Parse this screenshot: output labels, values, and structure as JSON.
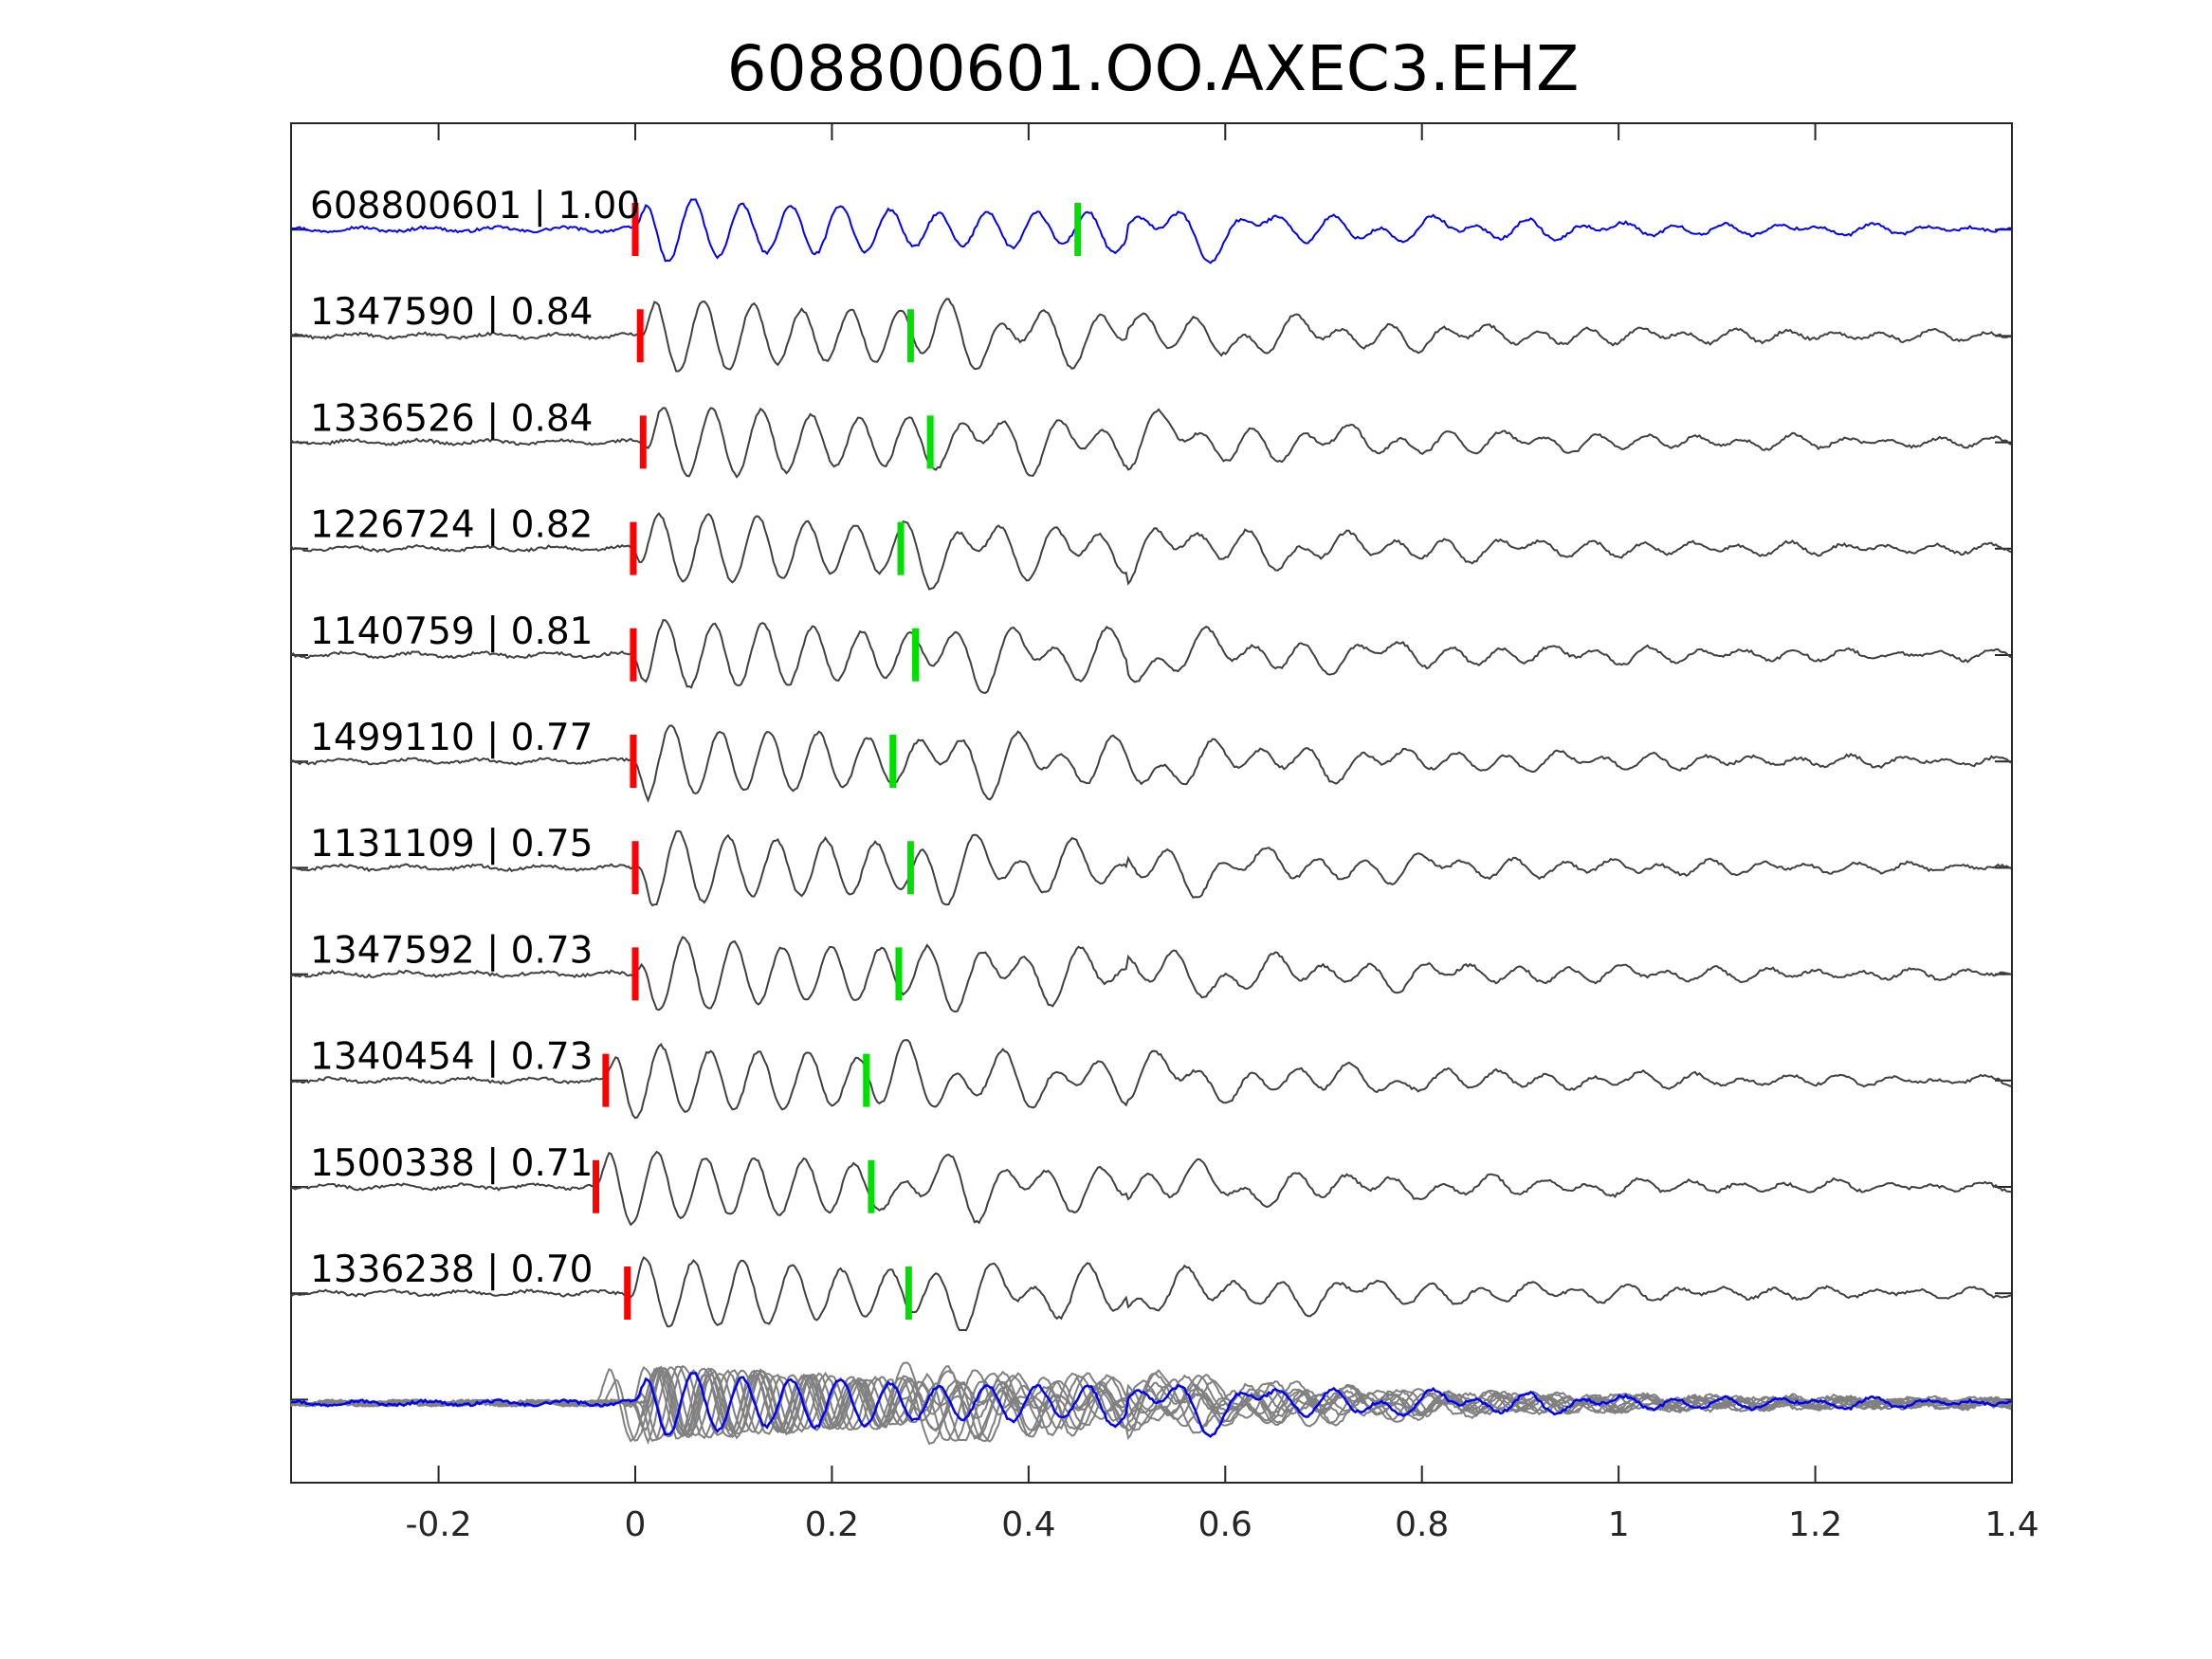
{
  "chart_data": {
    "type": "line",
    "title": "608800601.OO.AXEC3.EHZ",
    "xlabel": "",
    "ylabel": "",
    "xlim": [
      -0.35,
      1.4
    ],
    "xticks": [
      -0.2,
      0,
      0.2,
      0.4,
      0.6,
      0.8,
      1,
      1.2,
      1.4
    ],
    "xtick_labels": [
      "-0.2",
      "0",
      "0.2",
      "0.4",
      "0.6",
      "0.8",
      "1",
      "1.2",
      "1.4"
    ],
    "grid": false,
    "colors": {
      "master": "#0000ff",
      "trace": "#404040",
      "stack": "#808080",
      "p_pick": "#ff0000",
      "s_pick": "#00e000",
      "axes": "#262626"
    },
    "series": [
      {
        "label": "608800601 | 1.00",
        "id": "608800601",
        "cc": 1.0,
        "p_pick": 0.0,
        "s_pick": 0.45,
        "master": true
      },
      {
        "label": "1347590 | 0.84",
        "id": "1347590",
        "cc": 0.84,
        "p_pick": 0.005,
        "s_pick": 0.28
      },
      {
        "label": "1336526 | 0.84",
        "id": "1336526",
        "cc": 0.84,
        "p_pick": 0.008,
        "s_pick": 0.3
      },
      {
        "label": "1226724 | 0.82",
        "id": "1226724",
        "cc": 0.82,
        "p_pick": -0.002,
        "s_pick": 0.27
      },
      {
        "label": "1140759 | 0.81",
        "id": "1140759",
        "cc": 0.81,
        "p_pick": -0.002,
        "s_pick": 0.285
      },
      {
        "label": "1499110 | 0.77",
        "id": "1499110",
        "cc": 0.77,
        "p_pick": -0.002,
        "s_pick": 0.262
      },
      {
        "label": "1131109 | 0.75",
        "id": "1131109",
        "cc": 0.75,
        "p_pick": 0.0,
        "s_pick": 0.28
      },
      {
        "label": "1347592 | 0.73",
        "id": "1347592",
        "cc": 0.73,
        "p_pick": 0.0,
        "s_pick": 0.268
      },
      {
        "label": "1340454 | 0.73",
        "id": "1340454",
        "cc": 0.73,
        "p_pick": -0.03,
        "s_pick": 0.235
      },
      {
        "label": "1500338 | 0.71",
        "id": "1500338",
        "cc": 0.71,
        "p_pick": -0.04,
        "s_pick": 0.24
      },
      {
        "label": "1336238 | 0.70",
        "id": "1336238",
        "cc": 0.7,
        "p_pick": -0.008,
        "s_pick": 0.278
      }
    ]
  }
}
